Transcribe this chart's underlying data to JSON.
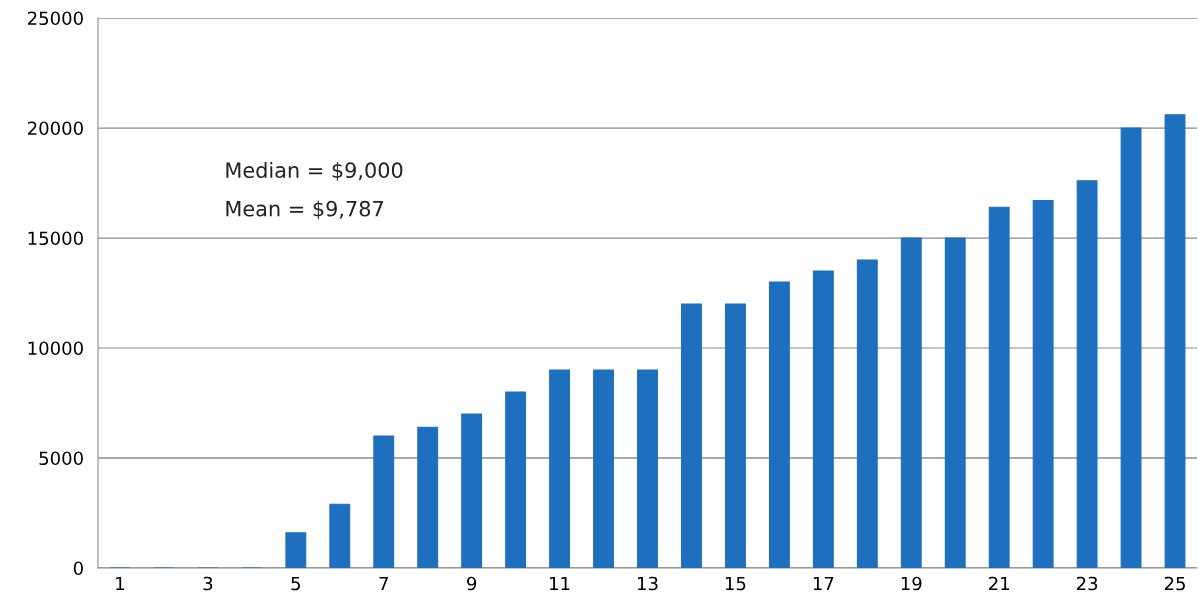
{
  "chart_data": {
    "type": "bar",
    "categories": [
      "1",
      null,
      "3",
      null,
      "5",
      null,
      "7",
      null,
      "9",
      null,
      "11",
      null,
      "13",
      null,
      "15",
      null,
      "17",
      null,
      "19",
      null,
      "21",
      null,
      "23",
      null,
      "25"
    ],
    "values": [
      0,
      0,
      0,
      0,
      1600,
      2900,
      6000,
      6400,
      7000,
      8000,
      9000,
      9000,
      9000,
      12000,
      12000,
      13000,
      13500,
      14000,
      15000,
      15000,
      16400,
      16700,
      17600,
      20000,
      20600
    ],
    "color": "#1f6fbf",
    "ylim": [
      0,
      25000
    ],
    "yticks": [
      0,
      5000,
      10000,
      15000,
      20000,
      25000
    ],
    "grid": "y",
    "legend": false,
    "annotations": [
      "Median = $9,000",
      "Mean = $9,787"
    ]
  }
}
